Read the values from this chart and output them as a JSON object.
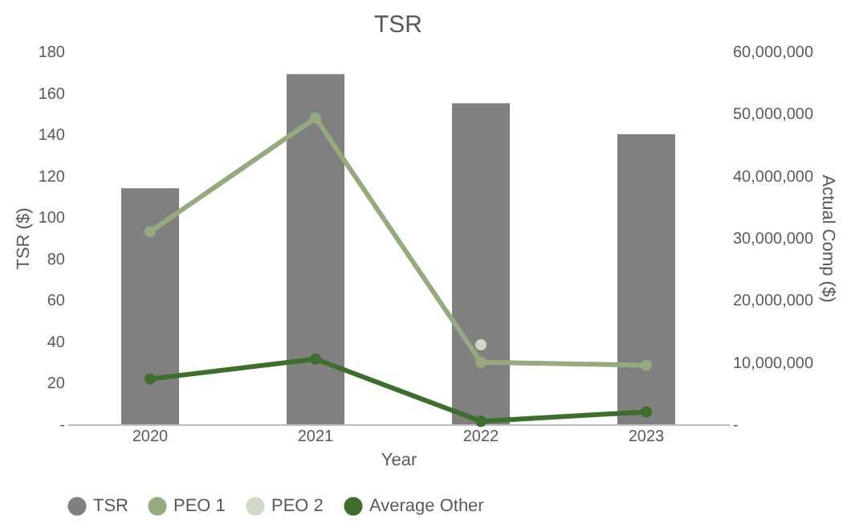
{
  "chart_data": {
    "type": "bar",
    "title": "TSR",
    "xlabel": "Year",
    "ylabel": "TSR ($)",
    "y2label": "Actual Comp ($)",
    "categories": [
      "2020",
      "2021",
      "2022",
      "2023"
    ],
    "series": [
      {
        "name": "TSR",
        "color": "#808080",
        "values": [
          114,
          169,
          155,
          140
        ]
      },
      {
        "name": "PEO 1",
        "type": "line",
        "axis": "y2",
        "color": "#94ab80",
        "values": [
          31000000,
          49300000,
          10000000,
          9500000
        ]
      },
      {
        "name": "PEO 2",
        "type": "line",
        "axis": "y2",
        "color": "#cfd9c4",
        "values": [
          null,
          null,
          12800000,
          null
        ]
      },
      {
        "name": "Average Other",
        "type": "line",
        "axis": "y2",
        "color": "#3d6e2c",
        "values": [
          7300000,
          10500000,
          500000,
          2000000
        ]
      }
    ],
    "ylim": [
      0,
      180
    ],
    "yticks": [
      {
        "value": 0,
        "label": "-"
      },
      20,
      40,
      60,
      80,
      100,
      120,
      140,
      160,
      180
    ],
    "y2lim": [
      0,
      60000000
    ],
    "y2ticks": [
      {
        "value": 0,
        "label": "-"
      },
      {
        "value": 10000000,
        "label": "10,000,000"
      },
      {
        "value": 20000000,
        "label": "20,000,000"
      },
      {
        "value": 30000000,
        "label": "30,000,000"
      },
      {
        "value": 40000000,
        "label": "40,000,000"
      },
      {
        "value": 50000000,
        "label": "50,000,000"
      },
      {
        "value": 60000000,
        "label": "60,000,000"
      }
    ],
    "grid": false,
    "legend": "bottom",
    "marker": "circle",
    "line_style": "solid"
  }
}
